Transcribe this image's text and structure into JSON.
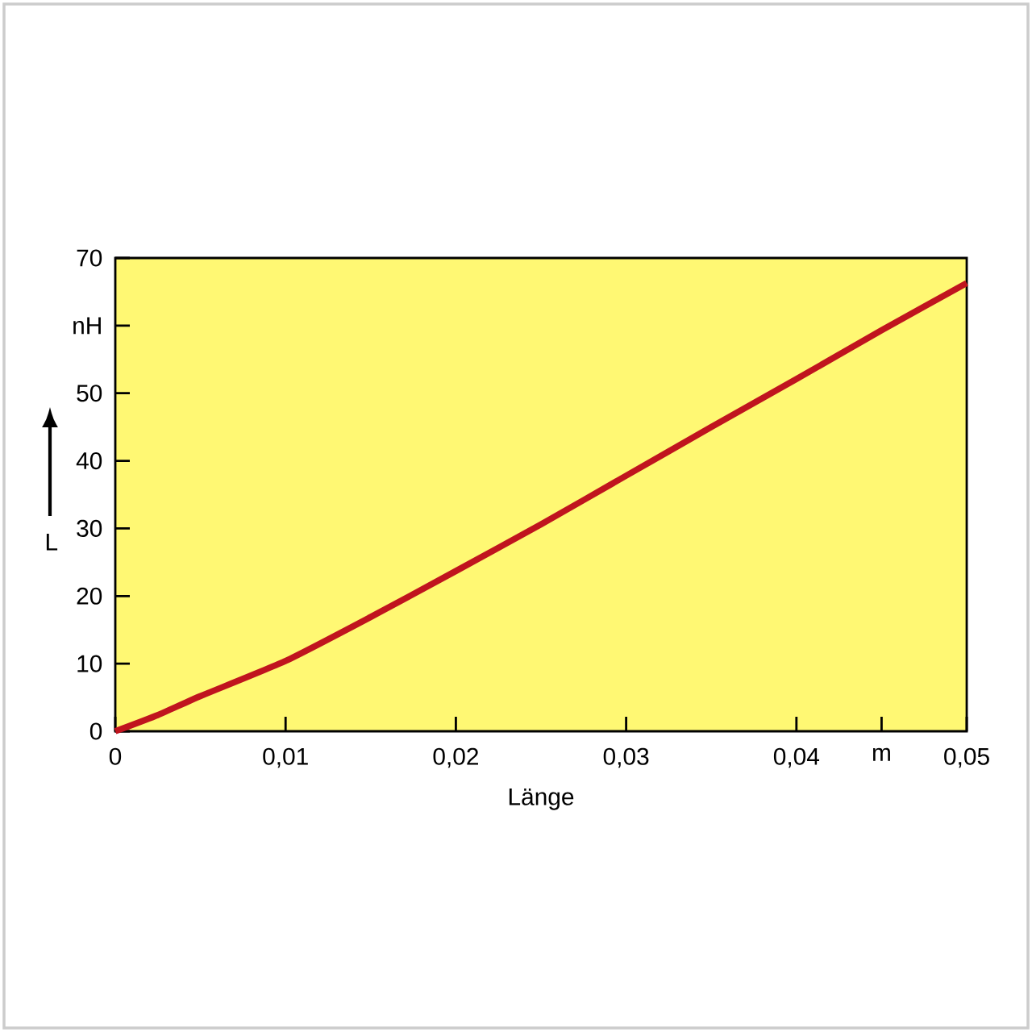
{
  "chart_data": {
    "type": "line",
    "xlabel": "Länge",
    "ylabel": "L",
    "x": [
      0,
      0.0025,
      0.005,
      0.01,
      0.015,
      0.02,
      0.025,
      0.03,
      0.035,
      0.04,
      0.045,
      0.05
    ],
    "series": [
      {
        "color": "#c0141e",
        "values": [
          0,
          2.4,
          5.2,
          10.4,
          16.9,
          23.7,
          30.6,
          37.8,
          45.0,
          52.1,
          59.3,
          66.3
        ]
      }
    ],
    "xlim": [
      0,
      0.05
    ],
    "xticks": [
      0,
      {
        "value": 0.01,
        "label": "0,01"
      },
      {
        "value": 0.02,
        "label": "0,02"
      },
      {
        "value": 0.03,
        "label": "0,03"
      },
      {
        "value": 0.04,
        "label": "0,04"
      },
      {
        "value": 0.045,
        "label": "m"
      },
      {
        "value": 0.05,
        "label": "0,05"
      }
    ],
    "ylim": [
      0,
      70
    ],
    "yticks": [
      0,
      10,
      20,
      30,
      40,
      50,
      {
        "value": 60,
        "label": "nH"
      },
      70
    ],
    "grid": false,
    "marker": "none",
    "line_style": "solid"
  }
}
